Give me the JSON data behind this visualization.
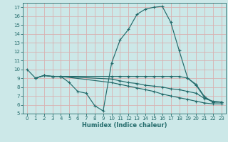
{
  "xlabel": "Humidex (Indice chaleur)",
  "bg_color": "#cce8e8",
  "grid_color": "#d8b0b0",
  "line_color": "#236b6b",
  "xlim": [
    -0.5,
    23.5
  ],
  "ylim": [
    5,
    17.5
  ],
  "xticks": [
    0,
    1,
    2,
    3,
    4,
    5,
    6,
    7,
    8,
    9,
    10,
    11,
    12,
    13,
    14,
    15,
    16,
    17,
    18,
    19,
    20,
    21,
    22,
    23
  ],
  "yticks": [
    5,
    6,
    7,
    8,
    9,
    10,
    11,
    12,
    13,
    14,
    15,
    16,
    17
  ],
  "line1_x": [
    0,
    1,
    2,
    3,
    4,
    5,
    6,
    7,
    8,
    9,
    10,
    11,
    12,
    13,
    14,
    15,
    16,
    17,
    18,
    19,
    20,
    21,
    22,
    23
  ],
  "line1_y": [
    10.0,
    9.0,
    9.3,
    9.2,
    9.2,
    8.5,
    7.5,
    7.3,
    5.9,
    5.3,
    10.7,
    13.3,
    14.5,
    16.2,
    16.8,
    17.0,
    17.1,
    15.3,
    12.1,
    9.0,
    8.2,
    6.8,
    6.3,
    6.3
  ],
  "line2_x": [
    1,
    2,
    3,
    4,
    10,
    11,
    12,
    13,
    14,
    15,
    16,
    17,
    18,
    19,
    20,
    21,
    22,
    23
  ],
  "line2_y": [
    9.0,
    9.3,
    9.2,
    9.2,
    9.2,
    9.2,
    9.2,
    9.2,
    9.2,
    9.2,
    9.2,
    9.2,
    9.2,
    9.0,
    8.3,
    6.9,
    6.3,
    6.3
  ],
  "line3_x": [
    1,
    2,
    3,
    4,
    10,
    11,
    12,
    13,
    14,
    15,
    16,
    17,
    18,
    19,
    20,
    21,
    22,
    23
  ],
  "line3_y": [
    9.0,
    9.3,
    9.2,
    9.2,
    8.9,
    8.7,
    8.5,
    8.4,
    8.2,
    8.1,
    8.0,
    7.8,
    7.7,
    7.5,
    7.3,
    6.7,
    6.4,
    6.3
  ],
  "line4_x": [
    3,
    4,
    10,
    11,
    12,
    13,
    14,
    15,
    16,
    17,
    18,
    19,
    20,
    21,
    22,
    23
  ],
  "line4_y": [
    9.2,
    9.2,
    8.5,
    8.3,
    8.1,
    7.9,
    7.7,
    7.5,
    7.2,
    7.0,
    6.8,
    6.6,
    6.4,
    6.2,
    6.1,
    6.1
  ]
}
